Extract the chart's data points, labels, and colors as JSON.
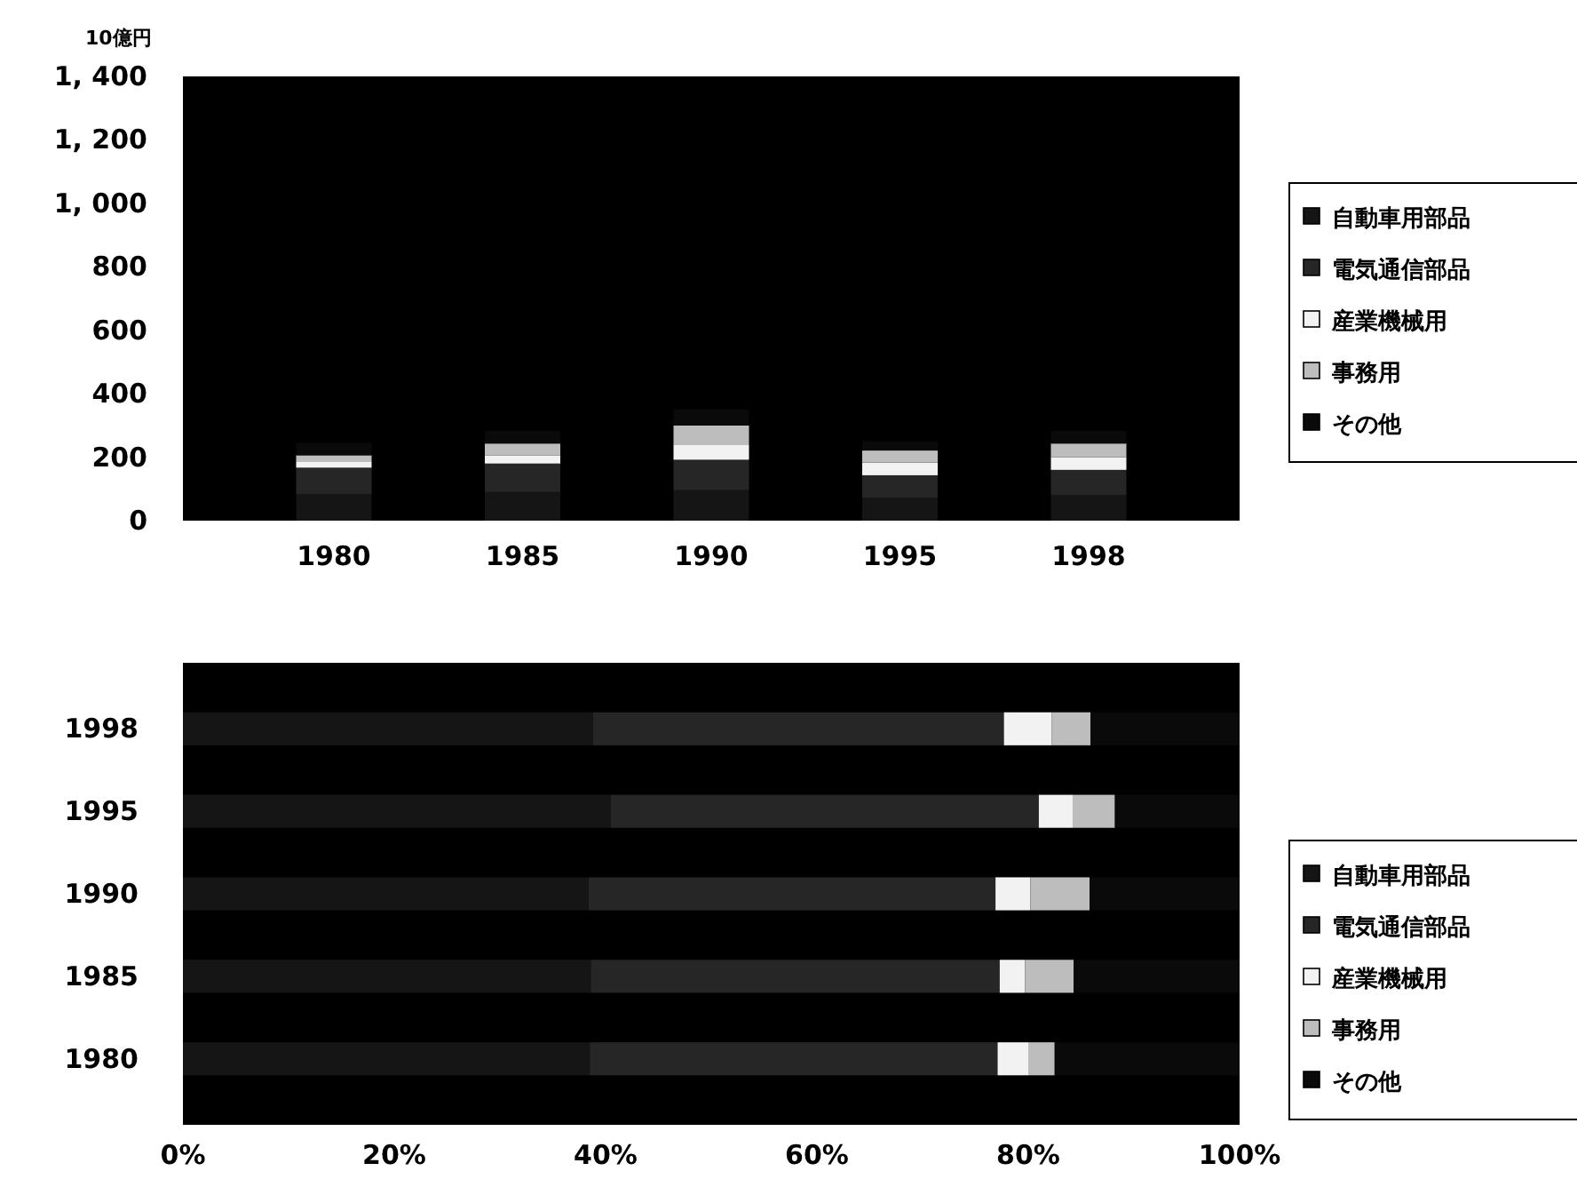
{
  "chart_data": [
    {
      "type": "bar",
      "stacked": true,
      "ylabel": "10億円",
      "categories": [
        "1980",
        "1985",
        "1990",
        "1995",
        "1998"
      ],
      "ylim": [
        0,
        1400
      ],
      "yticks": [
        0,
        {
          "value": 200,
          "label": "200"
        },
        {
          "value": 400,
          "label": "400"
        },
        {
          "value": 600,
          "label": "600"
        },
        {
          "value": 800,
          "label": "800"
        },
        {
          "value": 1000,
          "label": "1, 000"
        },
        {
          "value": 1200,
          "label": "1, 200"
        },
        {
          "value": 1400,
          "label": "1, 400"
        }
      ],
      "legend": "right",
      "grid": false,
      "series": [
        {
          "name": "自動車用部品",
          "color": "#151515",
          "values": [
            84,
            90,
            96,
            72,
            80
          ]
        },
        {
          "name": "電気通信部品",
          "color": "#262626",
          "values": [
            83,
            90,
            96,
            71,
            80
          ]
        },
        {
          "name": "産業機械用",
          "color": "#f2f2f2",
          "values": [
            20,
            25,
            46,
            40,
            40
          ]
        },
        {
          "name": "事務用",
          "color": "#bdbdbd",
          "values": [
            19,
            38,
            62,
            38,
            43
          ]
        },
        {
          "name": "その他",
          "color": "#0a0a0a",
          "values": [
            40,
            40,
            50,
            30,
            40
          ]
        }
      ]
    },
    {
      "type": "bar",
      "stacked": true,
      "orientation": "horizontal",
      "categories": [
        "1998",
        "1995",
        "1990",
        "1985",
        "1980"
      ],
      "xlim": [
        0,
        100
      ],
      "xticks": [
        {
          "value": 0,
          "label": "0%"
        },
        {
          "value": 20,
          "label": "20%"
        },
        {
          "value": 40,
          "label": "40%"
        },
        {
          "value": 60,
          "label": "60%"
        },
        {
          "value": 80,
          "label": "80%"
        },
        {
          "value": 100,
          "label": "100%"
        }
      ],
      "legend": "right",
      "grid": false,
      "series": [
        {
          "name": "自動車用部品",
          "color": "#151515",
          "values": [
            38.8,
            40.5,
            38.4,
            38.6,
            38.5
          ]
        },
        {
          "name": "電気通信部品",
          "color": "#262626",
          "values": [
            38.9,
            40.5,
            38.5,
            38.7,
            38.6
          ]
        },
        {
          "name": "産業機械用",
          "color": "#f2f2f2",
          "values": [
            4.5,
            3.2,
            3.3,
            2.4,
            2.9
          ]
        },
        {
          "name": "事務用",
          "color": "#bdbdbd",
          "values": [
            3.7,
            4.0,
            5.6,
            4.6,
            2.5
          ]
        },
        {
          "name": "その他",
          "color": "#0a0a0a",
          "values": [
            14.1,
            11.8,
            14.2,
            15.7,
            17.5
          ]
        }
      ]
    }
  ]
}
